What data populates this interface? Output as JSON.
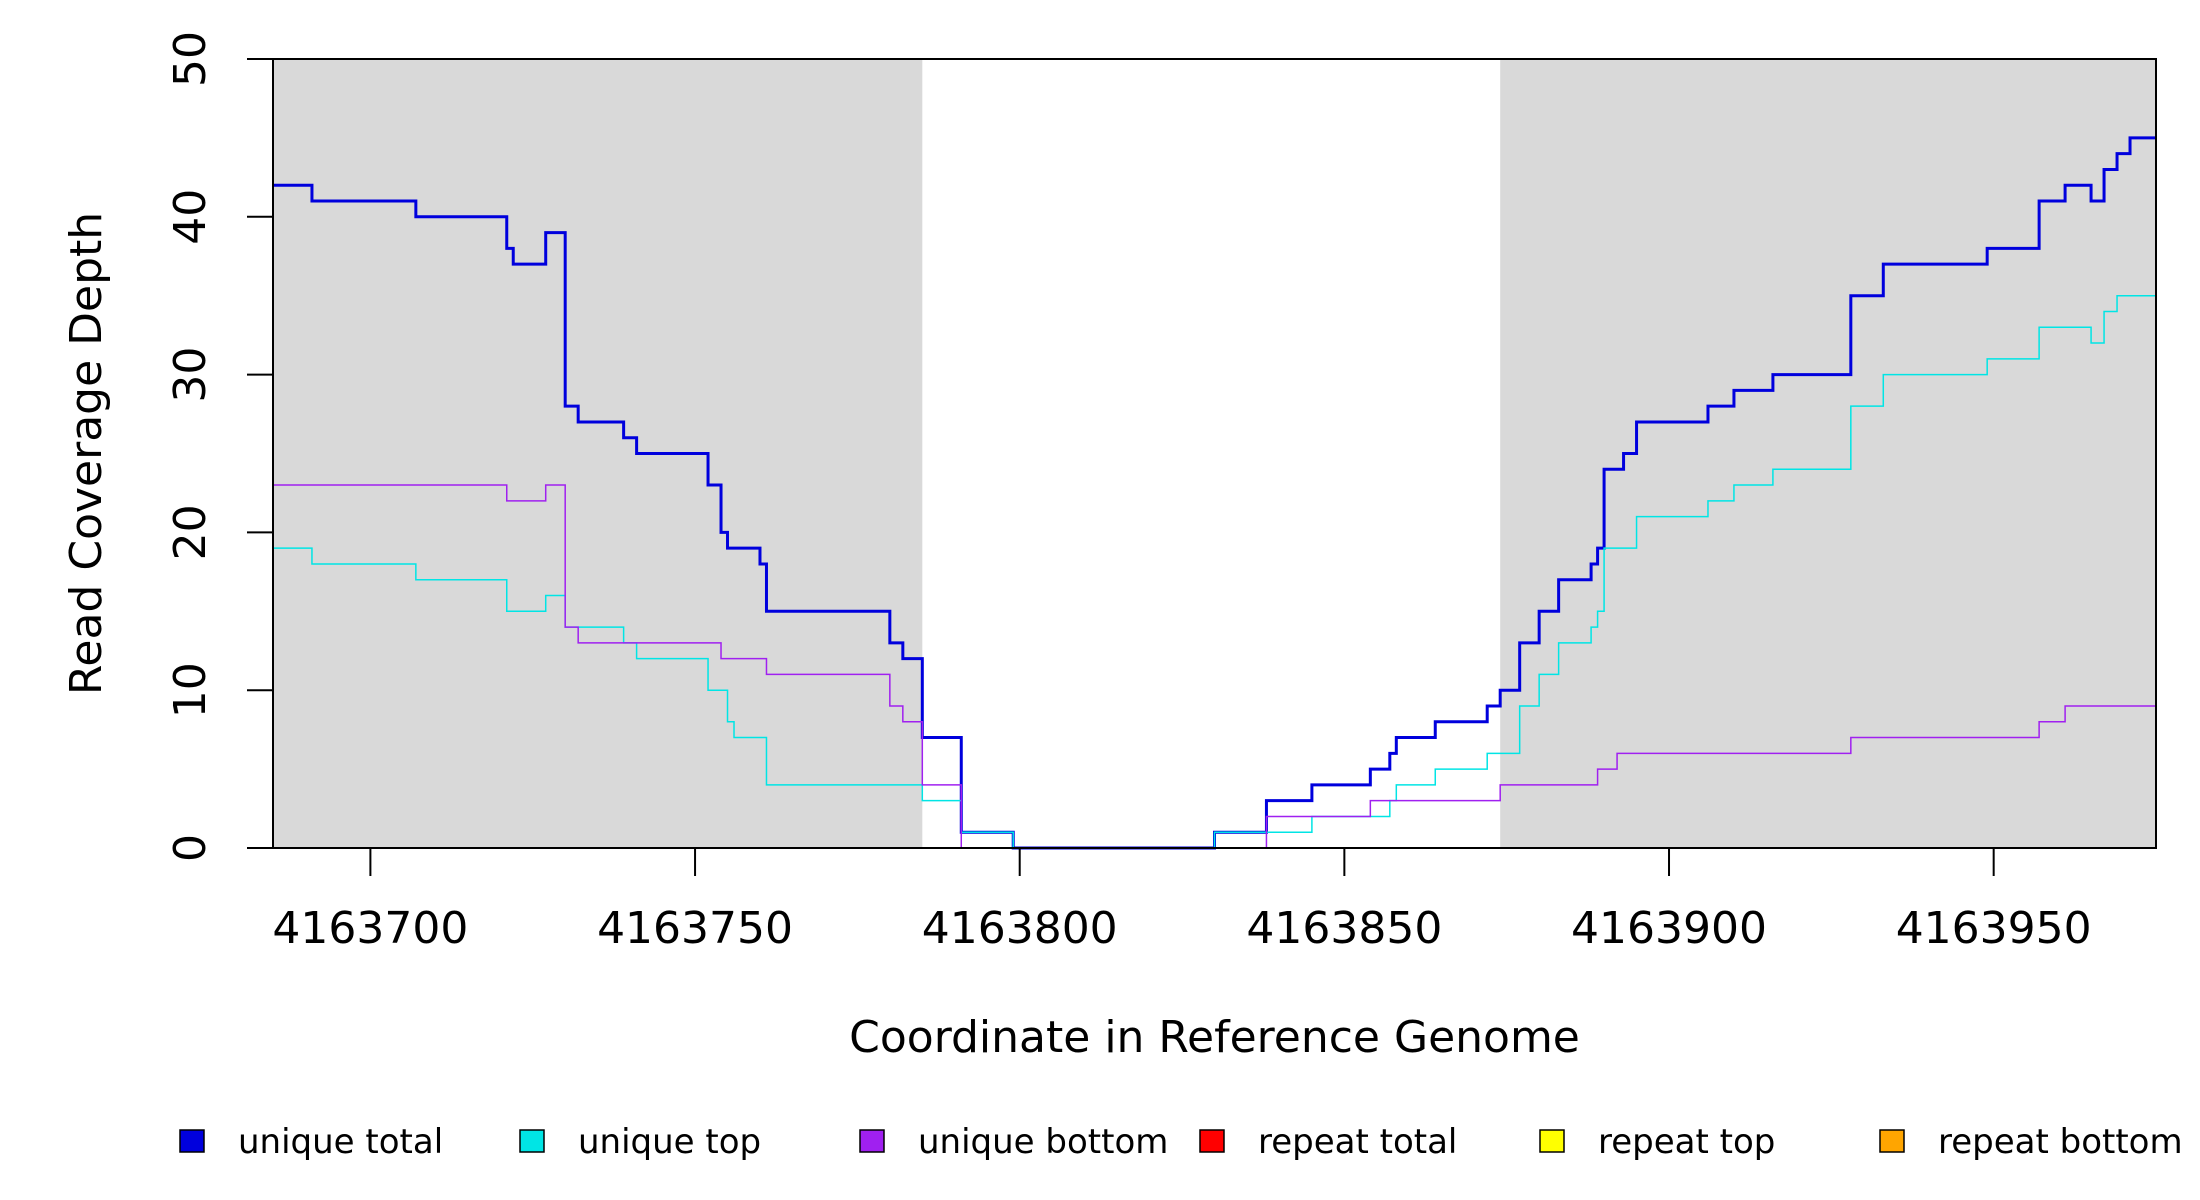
{
  "chart_data": {
    "type": "line",
    "xlabel": "Coordinate in Reference Genome",
    "ylabel": "Read Coverage Depth",
    "xlim": [
      4163685,
      4163975
    ],
    "ylim": [
      0,
      50
    ],
    "xticks": [
      4163700,
      4163750,
      4163800,
      4163850,
      4163900,
      4163950
    ],
    "xtick_labels": [
      "4163700",
      "4163750",
      "4163800",
      "4163850",
      "4163900",
      "4163950"
    ],
    "yticks": [
      0,
      10,
      20,
      30,
      40,
      50
    ],
    "ytick_labels": [
      "0",
      "10",
      "20",
      "30",
      "40",
      "50"
    ],
    "shaded_regions": [
      [
        4163685,
        4163785
      ],
      [
        4163874,
        4163975
      ]
    ],
    "shade_color": "#d9d9d9",
    "legend_position": "bottom",
    "series": [
      {
        "name": "unique total",
        "color": "#0000dd",
        "width": 3,
        "x": [
          4163685,
          4163691,
          4163707,
          4163721,
          4163722,
          4163727,
          4163730,
          4163732,
          4163739,
          4163741,
          4163752,
          4163754,
          4163755,
          4163760,
          4163761,
          4163780,
          4163782,
          4163785,
          4163791,
          4163799,
          4163830,
          4163838,
          4163845,
          4163854,
          4163857,
          4163858,
          4163864,
          4163872,
          4163874,
          4163877,
          4163880,
          4163883,
          4163888,
          4163889,
          4163890,
          4163893,
          4163895,
          4163906,
          4163910,
          4163916,
          4163928,
          4163933,
          4163949,
          4163957,
          4163961,
          4163965,
          4163967,
          4163969,
          4163971,
          4163975
        ],
        "y": [
          42,
          41,
          40,
          38,
          37,
          39,
          28,
          27,
          26,
          25,
          23,
          20,
          19,
          18,
          15,
          13,
          12,
          7,
          1,
          0,
          1,
          3,
          4,
          5,
          6,
          7,
          8,
          9,
          10,
          13,
          15,
          17,
          18,
          19,
          24,
          25,
          27,
          28,
          29,
          30,
          35,
          37,
          38,
          41,
          42,
          41,
          43,
          44,
          45,
          45
        ]
      },
      {
        "name": "unique top",
        "color": "#00e5e5",
        "width": 1.5,
        "x": [
          4163685,
          4163691,
          4163707,
          4163721,
          4163727,
          4163730,
          4163732,
          4163739,
          4163741,
          4163752,
          4163755,
          4163756,
          4163761,
          4163785,
          4163791,
          4163799,
          4163830,
          4163838,
          4163845,
          4163854,
          4163857,
          4163858,
          4163864,
          4163872,
          4163877,
          4163880,
          4163883,
          4163888,
          4163889,
          4163890,
          4163893,
          4163895,
          4163906,
          4163910,
          4163916,
          4163928,
          4163933,
          4163949,
          4163957,
          4163965,
          4163967,
          4163969,
          4163975
        ],
        "y": [
          19,
          18,
          17,
          15,
          16,
          14,
          14,
          13,
          12,
          10,
          8,
          7,
          4,
          3,
          1,
          0,
          1,
          1,
          2,
          2,
          3,
          4,
          5,
          6,
          9,
          11,
          13,
          14,
          15,
          19,
          19,
          21,
          22,
          23,
          24,
          28,
          30,
          31,
          33,
          32,
          34,
          35,
          35
        ]
      },
      {
        "name": "unique bottom",
        "color": "#a020f0",
        "width": 1.5,
        "x": [
          4163685,
          4163721,
          4163727,
          4163730,
          4163732,
          4163739,
          4163741,
          4163752,
          4163754,
          4163761,
          4163780,
          4163782,
          4163785,
          4163791,
          4163799,
          4163830,
          4163838,
          4163845,
          4163854,
          4163858,
          4163874,
          4163888,
          4163889,
          4163892,
          4163895,
          4163928,
          4163957,
          4163961,
          4163965,
          4163969,
          4163975
        ],
        "y": [
          23,
          22,
          23,
          14,
          13,
          13,
          13,
          13,
          12,
          11,
          9,
          8,
          4,
          0,
          0,
          0,
          2,
          2,
          3,
          3,
          4,
          4,
          5,
          6,
          6,
          7,
          8,
          9,
          9,
          9,
          10
        ]
      },
      {
        "name": "repeat total",
        "color": "#ff0000",
        "width": 1.5,
        "x": [
          4163685,
          4163975
        ],
        "y": [
          0,
          0
        ]
      },
      {
        "name": "repeat top",
        "color": "#ffff00",
        "width": 1.5,
        "x": [
          4163685,
          4163975
        ],
        "y": [
          0,
          0
        ]
      },
      {
        "name": "repeat bottom",
        "color": "#ffa500",
        "width": 2,
        "x": [
          4163685,
          4163975
        ],
        "y": [
          0,
          0
        ]
      }
    ]
  }
}
